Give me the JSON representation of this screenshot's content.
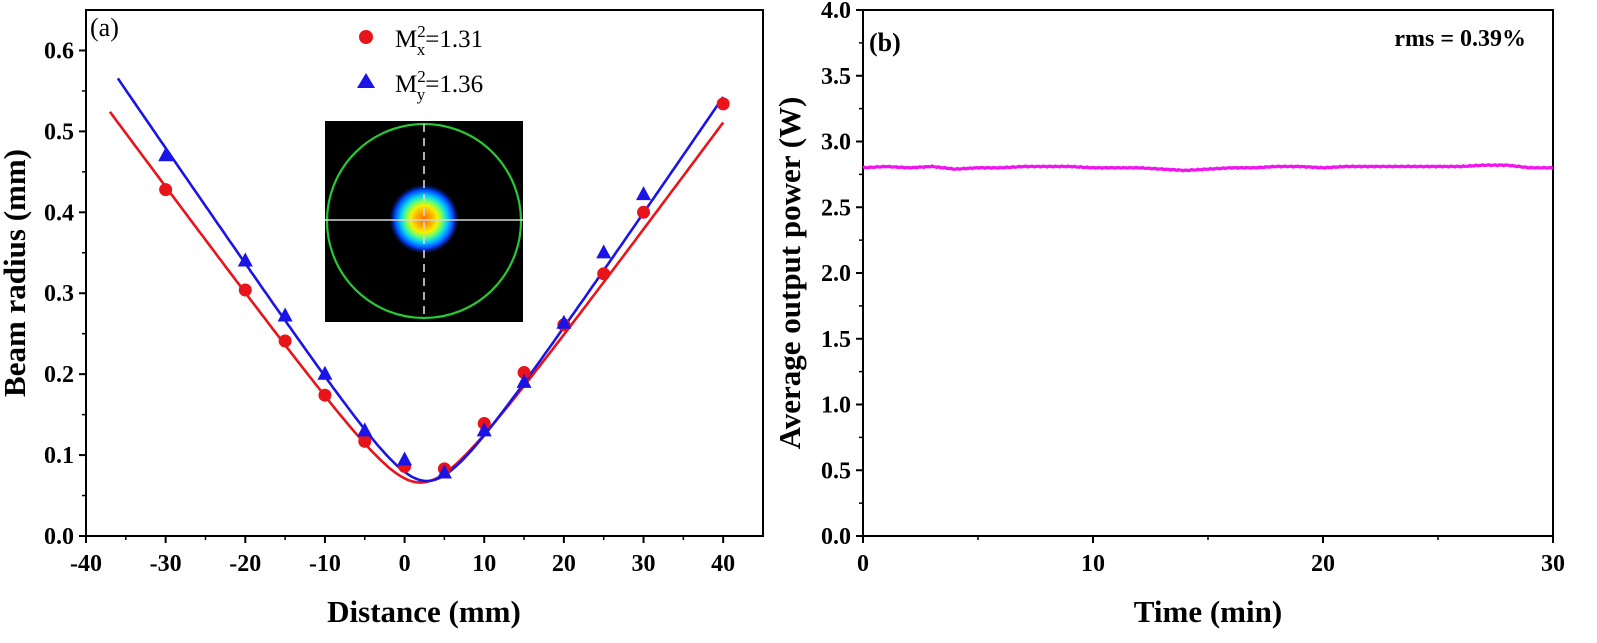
{
  "chart_data": [
    {
      "type": "scatter",
      "panel_label": "(a)",
      "xlabel": "Distance (mm)",
      "ylabel": "Beam radius (mm)",
      "xlim": [
        -40,
        45
      ],
      "ylim": [
        0.0,
        0.65
      ],
      "xticks": [
        -40,
        -30,
        -20,
        -10,
        0,
        10,
        20,
        30,
        40
      ],
      "xtick_labels": [
        "-40",
        "-30",
        "-20",
        "-10",
        "0",
        "10",
        "20",
        "30",
        "40"
      ],
      "yticks": [
        0.0,
        0.1,
        0.2,
        0.3,
        0.4,
        0.5,
        0.6
      ],
      "ytick_labels": [
        "0.0",
        "0.1",
        "0.2",
        "0.3",
        "0.4",
        "0.5",
        "0.6"
      ],
      "legend_position": "top-center",
      "inset": "beam-profile-image",
      "series": [
        {
          "name": "Mx",
          "legend_base": "M",
          "legend_sup": "2",
          "legend_sub": "x",
          "legend_value": "=1.31",
          "marker": "circle",
          "color": "#e8141a",
          "x": [
            -30,
            -20,
            -15,
            -10,
            -5,
            0,
            5,
            10,
            15,
            20,
            25,
            30,
            40
          ],
          "y": [
            0.428,
            0.304,
            0.241,
            0.174,
            0.117,
            0.086,
            0.083,
            0.139,
            0.202,
            0.261,
            0.324,
            0.4,
            0.534
          ],
          "fit": {
            "w0": 0.066,
            "z0": 2.0,
            "zr": 4.95,
            "x_range": [
              -37,
              40
            ]
          }
        },
        {
          "name": "My",
          "legend_base": "M",
          "legend_sup": "2",
          "legend_sub": "y",
          "legend_value": "=1.36",
          "marker": "triangle",
          "color": "#1a14e6",
          "x": [
            -30,
            -20,
            -15,
            -10,
            -5,
            0,
            5,
            10,
            15,
            20,
            25,
            30
          ],
          "y": [
            0.47,
            0.34,
            0.272,
            0.2,
            0.13,
            0.094,
            0.078,
            0.13,
            0.19,
            0.263,
            0.35,
            0.422
          ],
          "fit": {
            "w0": 0.068,
            "z0": 2.8,
            "zr": 4.7,
            "x_range": [
              -36,
              40
            ]
          }
        }
      ]
    },
    {
      "type": "line",
      "panel_label": "(b)",
      "annotation": "rms = 0.39%",
      "xlabel": "Time (min)",
      "ylabel": "Average output power (W)",
      "xlim": [
        0,
        30
      ],
      "ylim": [
        0.0,
        4.0
      ],
      "xticks": [
        0,
        10,
        20,
        30
      ],
      "xtick_labels": [
        "0",
        "10",
        "20",
        "30"
      ],
      "yticks": [
        0.0,
        0.5,
        1.0,
        1.5,
        2.0,
        2.5,
        3.0,
        3.5,
        4.0
      ],
      "ytick_labels": [
        "0.0",
        "0.5",
        "1.0",
        "1.5",
        "2.0",
        "2.5",
        "3.0",
        "3.5",
        "4.0"
      ],
      "series": [
        {
          "name": "Average output power",
          "color": "#f214f0",
          "x": [
            0,
            1,
            2,
            3,
            4,
            5,
            6,
            7,
            8,
            9,
            10,
            11,
            12,
            13,
            14,
            15,
            16,
            17,
            18,
            19,
            20,
            21,
            22,
            23,
            24,
            25,
            26,
            27,
            28,
            29,
            30
          ],
          "y": [
            2.8,
            2.81,
            2.8,
            2.81,
            2.79,
            2.8,
            2.8,
            2.81,
            2.81,
            2.81,
            2.8,
            2.8,
            2.8,
            2.79,
            2.78,
            2.79,
            2.8,
            2.8,
            2.81,
            2.81,
            2.8,
            2.81,
            2.81,
            2.81,
            2.81,
            2.81,
            2.81,
            2.82,
            2.82,
            2.8,
            2.8
          ]
        }
      ]
    }
  ]
}
